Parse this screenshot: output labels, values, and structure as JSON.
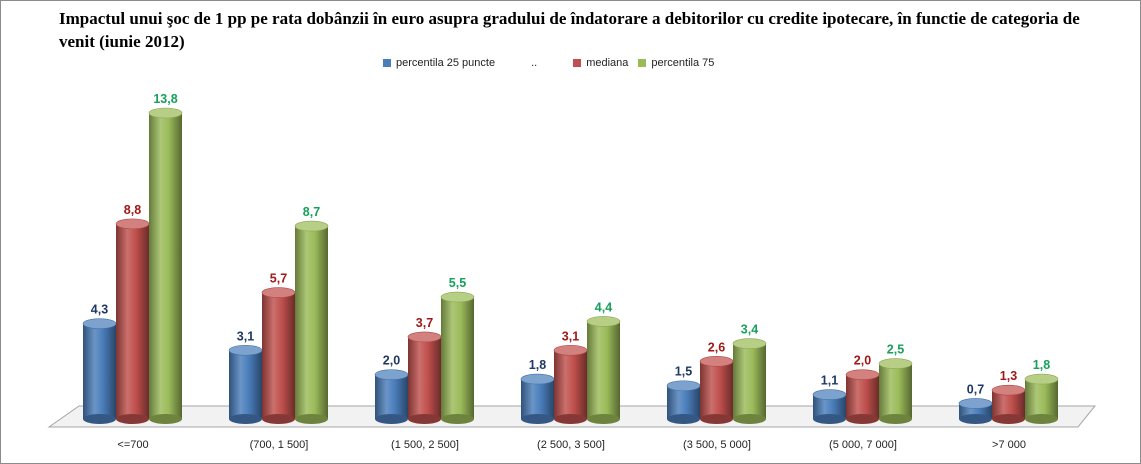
{
  "chart_data": {
    "type": "bar",
    "title": "Impactul unui şoc de 1 pp pe rata dobânzii în euro asupra gradului de îndatorare a debitorilor cu credite ipotecare, în functie de categoria de venit (iunie 2012)",
    "xlabel": "",
    "ylabel": "",
    "categories": [
      "<=700",
      "(700, 1 500]",
      "(1 500, 2 500]",
      "(2 500, 3 500]",
      "(3 500, 5 000]",
      "(5 000, 7 000]",
      ">7 000"
    ],
    "series": [
      {
        "name": "percentila 25 puncte",
        "values": [
          4.3,
          3.1,
          2.0,
          1.8,
          1.5,
          1.1,
          0.7
        ],
        "labels": [
          "4,3",
          "3,1",
          "2,0",
          "1,8",
          "1,5",
          "1,1",
          "0,7"
        ],
        "color": "#4a7ebb",
        "label_color": "#1f3864"
      },
      {
        "name": "mediana",
        "values": [
          8.8,
          5.7,
          3.7,
          3.1,
          2.6,
          2.0,
          1.3
        ],
        "labels": [
          "8,8",
          "5,7",
          "3,7",
          "3,1",
          "2,6",
          "2,0",
          "1,3"
        ],
        "color": "#c0504d",
        "label_color": "#a01818"
      },
      {
        "name": "percentila 75",
        "values": [
          13.8,
          8.7,
          5.5,
          4.4,
          3.4,
          2.5,
          1.8
        ],
        "labels": [
          "13,8",
          "8,7",
          "5,5",
          "4,4",
          "3,4",
          "2,5",
          "1,8"
        ],
        "color": "#9bbb59",
        "label_color": "#17a05a"
      }
    ],
    "legend_extra": "..",
    "legend_position": "top",
    "grid": false,
    "ylim": [
      0,
      14
    ]
  }
}
